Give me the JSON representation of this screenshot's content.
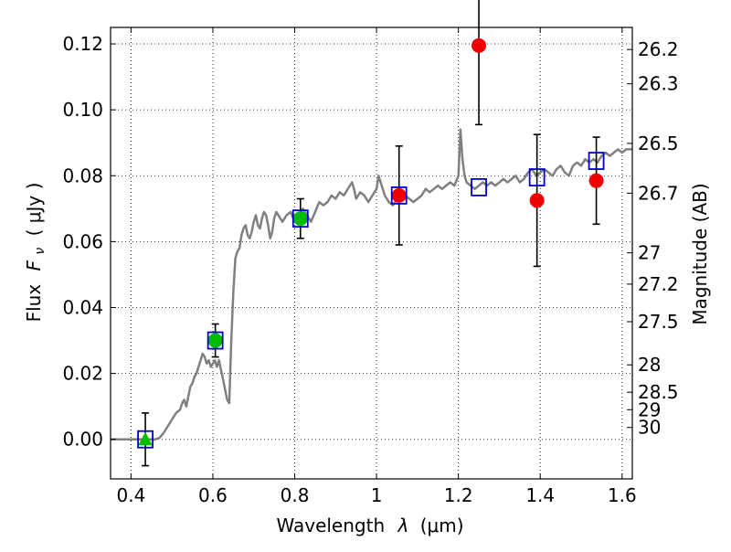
{
  "chart_data": {
    "type": "scatter",
    "xlabel_prefix": "Wavelength",
    "xlabel_symbol": "λ",
    "xlabel_unit": "(μm)",
    "ylabel_prefix": "Flux",
    "ylabel_symbol": "F",
    "ylabel_subscript": "ν",
    "ylabel_unit": "( μJy )",
    "y2label": "Magnitude (AB)",
    "xlim": [
      0.35,
      1.625
    ],
    "ylim": [
      -0.012,
      0.125
    ],
    "grid": true,
    "x_ticks": [
      0.4,
      0.6,
      0.8,
      1.0,
      1.2,
      1.4,
      1.6
    ],
    "x_tick_labels": [
      "0.4",
      "0.6",
      "0.8",
      "1",
      "1.2",
      "1.4",
      "1.6"
    ],
    "y_ticks": [
      0.0,
      0.02,
      0.04,
      0.06,
      0.08,
      0.1,
      0.12
    ],
    "y_tick_labels": [
      "0.00",
      "0.02",
      "0.04",
      "0.06",
      "0.08",
      "0.10",
      "0.12"
    ],
    "mag_ticks": [
      {
        "label": "26.2",
        "flux": 0.1183
      },
      {
        "label": "26.3",
        "flux": 0.1079
      },
      {
        "label": "26.5",
        "flux": 0.0898
      },
      {
        "label": "26.7",
        "flux": 0.0747
      },
      {
        "label": "27",
        "flux": 0.0566
      },
      {
        "label": "27.2",
        "flux": 0.0471
      },
      {
        "label": "27.5",
        "flux": 0.0357
      },
      {
        "label": "28",
        "flux": 0.0226
      },
      {
        "label": "28.5",
        "flux": 0.0143
      },
      {
        "label": "29",
        "flux": 0.009
      },
      {
        "label": "30",
        "flux": 0.0036
      }
    ],
    "colors": {
      "model": "#808080",
      "square": "#0000cc",
      "green": "#00bb00",
      "red": "#ee0000",
      "errorbar": "#000000"
    },
    "model_spectrum": [
      [
        0.35,
        0.0
      ],
      [
        0.44,
        0.0
      ],
      [
        0.46,
        0.0
      ],
      [
        0.47,
        0.0005
      ],
      [
        0.48,
        0.002
      ],
      [
        0.49,
        0.004
      ],
      [
        0.5,
        0.006
      ],
      [
        0.51,
        0.008
      ],
      [
        0.52,
        0.009
      ],
      [
        0.525,
        0.011
      ],
      [
        0.53,
        0.012
      ],
      [
        0.535,
        0.01
      ],
      [
        0.54,
        0.013
      ],
      [
        0.545,
        0.016
      ],
      [
        0.55,
        0.017
      ],
      [
        0.555,
        0.019
      ],
      [
        0.56,
        0.02
      ],
      [
        0.565,
        0.022
      ],
      [
        0.57,
        0.024
      ],
      [
        0.575,
        0.026
      ],
      [
        0.58,
        0.025
      ],
      [
        0.585,
        0.023
      ],
      [
        0.59,
        0.024
      ],
      [
        0.595,
        0.022
      ],
      [
        0.6,
        0.023
      ],
      [
        0.605,
        0.024
      ],
      [
        0.61,
        0.022
      ],
      [
        0.615,
        0.024
      ],
      [
        0.62,
        0.021
      ],
      [
        0.625,
        0.018
      ],
      [
        0.63,
        0.015
      ],
      [
        0.635,
        0.012
      ],
      [
        0.64,
        0.011
      ],
      [
        0.645,
        0.03
      ],
      [
        0.65,
        0.045
      ],
      [
        0.655,
        0.055
      ],
      [
        0.66,
        0.057
      ],
      [
        0.665,
        0.058
      ],
      [
        0.67,
        0.062
      ],
      [
        0.675,
        0.064
      ],
      [
        0.68,
        0.065
      ],
      [
        0.685,
        0.062
      ],
      [
        0.69,
        0.061
      ],
      [
        0.695,
        0.063
      ],
      [
        0.7,
        0.066
      ],
      [
        0.705,
        0.068
      ],
      [
        0.71,
        0.065
      ],
      [
        0.715,
        0.064
      ],
      [
        0.72,
        0.067
      ],
      [
        0.725,
        0.069
      ],
      [
        0.73,
        0.068
      ],
      [
        0.735,
        0.065
      ],
      [
        0.74,
        0.061
      ],
      [
        0.745,
        0.063
      ],
      [
        0.75,
        0.067
      ],
      [
        0.755,
        0.069
      ],
      [
        0.76,
        0.068
      ],
      [
        0.77,
        0.066
      ],
      [
        0.78,
        0.068
      ],
      [
        0.79,
        0.069
      ],
      [
        0.8,
        0.066
      ],
      [
        0.81,
        0.068
      ],
      [
        0.82,
        0.07
      ],
      [
        0.83,
        0.068
      ],
      [
        0.84,
        0.066
      ],
      [
        0.85,
        0.069
      ],
      [
        0.86,
        0.072
      ],
      [
        0.87,
        0.071
      ],
      [
        0.88,
        0.072
      ],
      [
        0.89,
        0.074
      ],
      [
        0.9,
        0.073
      ],
      [
        0.91,
        0.075
      ],
      [
        0.92,
        0.074
      ],
      [
        0.93,
        0.076
      ],
      [
        0.94,
        0.078
      ],
      [
        0.945,
        0.076
      ],
      [
        0.95,
        0.073
      ],
      [
        0.96,
        0.075
      ],
      [
        0.97,
        0.074
      ],
      [
        0.98,
        0.072
      ],
      [
        0.99,
        0.074
      ],
      [
        1.0,
        0.076
      ],
      [
        1.005,
        0.08
      ],
      [
        1.01,
        0.078
      ],
      [
        1.02,
        0.074
      ],
      [
        1.03,
        0.072
      ],
      [
        1.04,
        0.071
      ],
      [
        1.05,
        0.073
      ],
      [
        1.06,
        0.075
      ],
      [
        1.07,
        0.074
      ],
      [
        1.08,
        0.073
      ],
      [
        1.09,
        0.072
      ],
      [
        1.1,
        0.073
      ],
      [
        1.11,
        0.074
      ],
      [
        1.12,
        0.076
      ],
      [
        1.13,
        0.075
      ],
      [
        1.14,
        0.076
      ],
      [
        1.15,
        0.077
      ],
      [
        1.16,
        0.076
      ],
      [
        1.17,
        0.077
      ],
      [
        1.18,
        0.078
      ],
      [
        1.19,
        0.077
      ],
      [
        1.2,
        0.08
      ],
      [
        1.205,
        0.094
      ],
      [
        1.21,
        0.085
      ],
      [
        1.215,
        0.08
      ],
      [
        1.22,
        0.078
      ],
      [
        1.23,
        0.077
      ],
      [
        1.24,
        0.076
      ],
      [
        1.25,
        0.077
      ],
      [
        1.26,
        0.078
      ],
      [
        1.27,
        0.077
      ],
      [
        1.28,
        0.078
      ],
      [
        1.29,
        0.077
      ],
      [
        1.3,
        0.078
      ],
      [
        1.31,
        0.079
      ],
      [
        1.32,
        0.078
      ],
      [
        1.33,
        0.079
      ],
      [
        1.34,
        0.08
      ],
      [
        1.35,
        0.078
      ],
      [
        1.36,
        0.079
      ],
      [
        1.37,
        0.081
      ],
      [
        1.38,
        0.082
      ],
      [
        1.39,
        0.08
      ],
      [
        1.4,
        0.081
      ],
      [
        1.41,
        0.082
      ],
      [
        1.42,
        0.081
      ],
      [
        1.43,
        0.08
      ],
      [
        1.44,
        0.082
      ],
      [
        1.45,
        0.083
      ],
      [
        1.46,
        0.081
      ],
      [
        1.47,
        0.08
      ],
      [
        1.48,
        0.083
      ],
      [
        1.49,
        0.084
      ],
      [
        1.5,
        0.083
      ],
      [
        1.51,
        0.085
      ],
      [
        1.52,
        0.084
      ],
      [
        1.53,
        0.085
      ],
      [
        1.54,
        0.084
      ],
      [
        1.55,
        0.086
      ],
      [
        1.56,
        0.087
      ],
      [
        1.57,
        0.086
      ],
      [
        1.58,
        0.087
      ],
      [
        1.59,
        0.088
      ],
      [
        1.6,
        0.087
      ],
      [
        1.61,
        0.088
      ],
      [
        1.62,
        0.088
      ],
      [
        1.625,
        0.088
      ]
    ],
    "model_photometry": [
      {
        "x": 0.435,
        "y": 0.0
      },
      {
        "x": 0.606,
        "y": 0.03
      },
      {
        "x": 0.814,
        "y": 0.067
      },
      {
        "x": 1.055,
        "y": 0.074
      },
      {
        "x": 1.25,
        "y": 0.0765
      },
      {
        "x": 1.392,
        "y": 0.0795
      },
      {
        "x": 1.537,
        "y": 0.0845
      }
    ],
    "observed_green": [
      {
        "x": 0.435,
        "y": 0.0,
        "err": 0.008,
        "marker": "triangle"
      },
      {
        "x": 0.606,
        "y": 0.03,
        "err": 0.005,
        "marker": "circle"
      },
      {
        "x": 0.814,
        "y": 0.067,
        "err": 0.006,
        "marker": "circle"
      }
    ],
    "observed_red": [
      {
        "x": 1.055,
        "y": 0.074,
        "err": 0.015
      },
      {
        "x": 1.25,
        "y": 0.1195,
        "err": 0.024
      },
      {
        "x": 1.392,
        "y": 0.0725,
        "err": 0.02
      },
      {
        "x": 1.537,
        "y": 0.0785,
        "err": 0.0132
      }
    ]
  }
}
